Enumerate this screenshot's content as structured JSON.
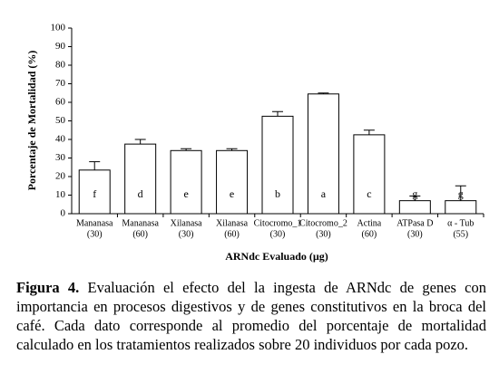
{
  "chart_data": {
    "type": "bar",
    "ylabel": "Porcentaje de Mortalidad (%)",
    "xlabel": "ARNdc Evaluado (µg)",
    "categories": [
      "Mananasa",
      "Mananasa",
      "Xilanasa",
      "Xilanasa",
      "Citocromo_1",
      "Citocromo_2",
      "Actina",
      "ATPasa D",
      "α - Tub"
    ],
    "category_doses": [
      "(30)",
      "(60)",
      "(30)",
      "(60)",
      "(30)",
      "(30)",
      "(60)",
      "(30)",
      "(55)"
    ],
    "values": [
      23.5,
      37.5,
      34,
      34,
      52.5,
      64.5,
      42.5,
      7,
      7
    ],
    "errors": [
      4.5,
      2.5,
      1,
      1,
      2.5,
      0.5,
      2.5,
      2.5,
      8
    ],
    "group_letters": [
      "f",
      "d",
      "e",
      "e",
      "b",
      "a",
      "c",
      "g",
      "g"
    ],
    "color": "#ffffff",
    "ylim": [
      0,
      100
    ],
    "yticks": [
      0,
      10,
      20,
      30,
      40,
      50,
      60,
      70,
      80,
      90,
      100
    ]
  },
  "caption": {
    "label": "Figura 4.",
    "text": "Evaluación el efecto del la ingesta de ARNdc de genes con importancia en procesos digestivos y de genes constitutivos en la broca del café. Cada dato corresponde al promedio del porcentaje de mortalidad calculado en los tratamientos realizados sobre 20 individuos por cada pozo."
  }
}
